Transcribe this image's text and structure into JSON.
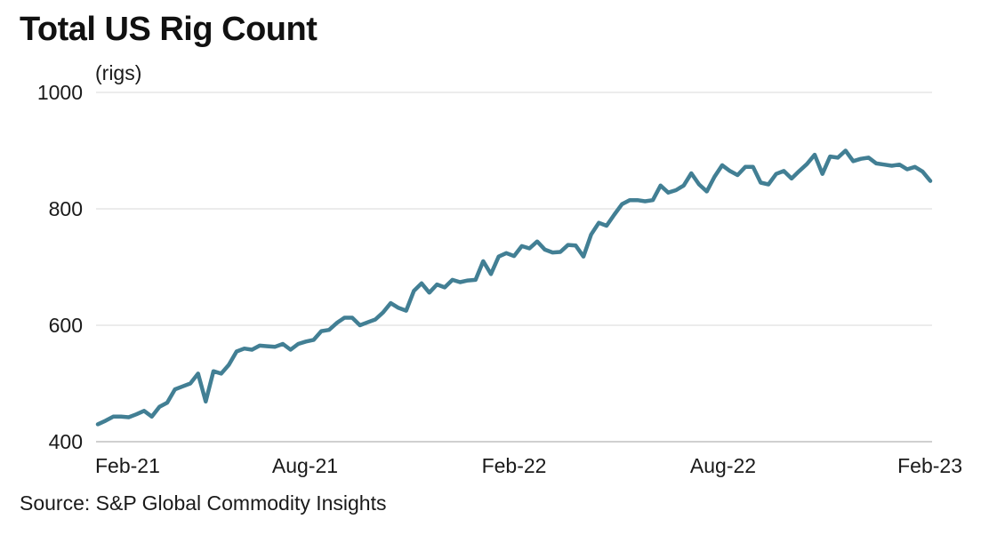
{
  "chart_data": {
    "type": "line",
    "title": "Total US Rig Count",
    "ylabel": "(rigs)",
    "source": "Source: S&P Global Commodity Insights",
    "ylim": [
      400,
      1000
    ],
    "yticks": [
      1000,
      800,
      600,
      400
    ],
    "xticks": [
      "Feb-21",
      "Aug-21",
      "Feb-22",
      "Aug-22",
      "Feb-23"
    ],
    "x_range_weeks": [
      0,
      104
    ],
    "grid": true,
    "line_color": "#427f94",
    "series": [
      {
        "name": "",
        "values": [
          430,
          436,
          443,
          443,
          442,
          447,
          453,
          443,
          460,
          467,
          490,
          495,
          500,
          517,
          469,
          521,
          517,
          532,
          555,
          560,
          558,
          565,
          564,
          563,
          568,
          558,
          568,
          572,
          575,
          590,
          592,
          604,
          613,
          613,
          600,
          605,
          610,
          622,
          638,
          630,
          625,
          659,
          672,
          656,
          670,
          665,
          678,
          674,
          677,
          678,
          710,
          688,
          718,
          724,
          719,
          736,
          732,
          744,
          730,
          725,
          726,
          738,
          737,
          718,
          756,
          776,
          771,
          790,
          808,
          815,
          815,
          813,
          815,
          840,
          828,
          832,
          840,
          861,
          842,
          830,
          855,
          875,
          865,
          858,
          872,
          872,
          845,
          842,
          860,
          865,
          852,
          865,
          877,
          893,
          860,
          890,
          888,
          900,
          882,
          886,
          888,
          878,
          876,
          874,
          876,
          868,
          872,
          864,
          848
        ]
      }
    ]
  }
}
